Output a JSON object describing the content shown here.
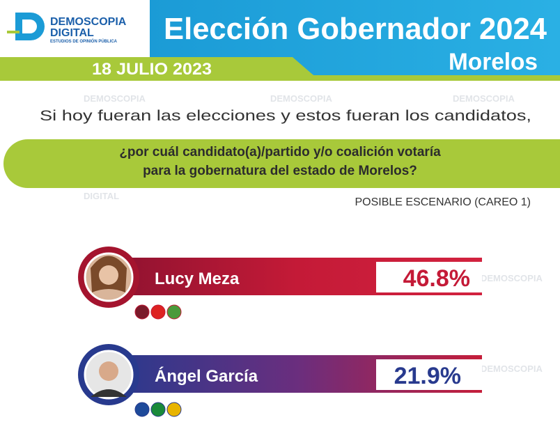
{
  "header": {
    "logo": {
      "name": "DEMOSCOPIA",
      "name2": "DIGITAL",
      "tagline": "ESTUDIOS DE OPINIÓN PÚBLICA"
    },
    "title": "Elección Gobernador 2024",
    "subtitle": "Morelos",
    "date": "18 JULIO 2023"
  },
  "question": {
    "intro": "Si hoy fueran las elecciones y estos fueran los candidatos,",
    "line1": "¿por cuál candidato(a)/partido y/o coalición votaría",
    "line2": "para la gobernatura del estado de Morelos?",
    "scenario": "POSIBLE ESCENARIO (CAREO 1)"
  },
  "candidates": [
    {
      "name": "Lucy Meza",
      "result": "46.8%"
    },
    {
      "name": "Ángel García",
      "result": "21.9%"
    }
  ]
}
